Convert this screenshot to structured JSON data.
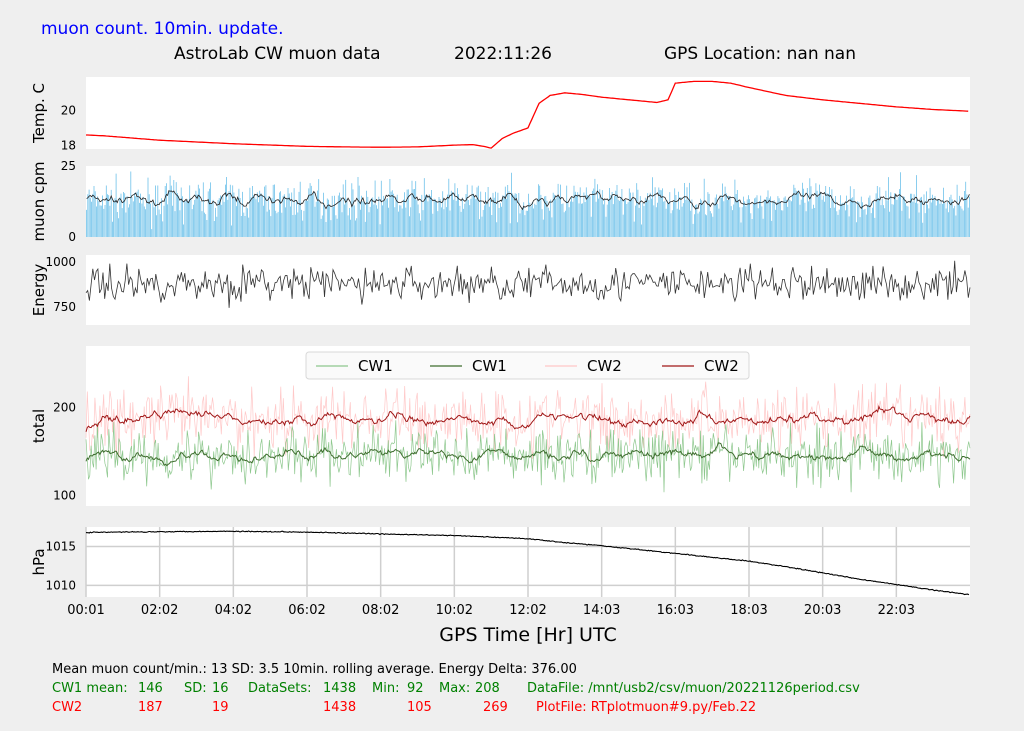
{
  "header": {
    "subtitle": "muon count.  10min. update.",
    "title": "AstroLab CW muon data",
    "date": "2022:11:26",
    "gps": "GPS Location: nan   nan"
  },
  "colors": {
    "background": "#efefef",
    "panel": "#ffffff",
    "temp_line": "#ff0000",
    "muon_bars": "#6ec1ea",
    "muon_avg": "#222222",
    "energy": "#333333",
    "cw1_raw": "#8ec88e",
    "cw1_avg": "#3f6e2f",
    "cw2_raw": "#ffc8c8",
    "cw2_avg": "#a01818",
    "pressure": "#000000",
    "stats_black": "#000000",
    "stats_green": "#008000",
    "stats_red": "#ff0000"
  },
  "chart_data": [
    {
      "type": "line",
      "ylabel": "Temp. C",
      "yticks": [
        18,
        20
      ],
      "ylim": [
        17.8,
        21.9
      ],
      "x": [
        0,
        0.5,
        2,
        4,
        6,
        7,
        8,
        9,
        10,
        10.5,
        10.8,
        11,
        11.3,
        11.6,
        12,
        12.3,
        12.6,
        13,
        13.5,
        14,
        15,
        15.5,
        15.8,
        16,
        16.5,
        17,
        17.5,
        18,
        19,
        20,
        21,
        22,
        23,
        24
      ],
      "y": [
        18.6,
        18.55,
        18.3,
        18.1,
        17.95,
        17.92,
        17.9,
        17.92,
        18.02,
        18.05,
        17.95,
        17.85,
        18.4,
        18.7,
        19.0,
        20.4,
        20.85,
        21.0,
        20.9,
        20.75,
        20.55,
        20.45,
        20.6,
        21.55,
        21.65,
        21.65,
        21.55,
        21.3,
        20.85,
        20.6,
        20.4,
        20.2,
        20.05,
        19.95
      ]
    },
    {
      "type": "bar",
      "ylabel": "muon cpm",
      "yticks": [
        0,
        25
      ],
      "ylim": [
        0,
        25
      ],
      "mean": 13,
      "sd": 3.5,
      "series": [
        {
          "name": "",
          "style": "bars",
          "mean": 13,
          "sd": 3.5
        },
        {
          "name": "",
          "style": "rolling-average",
          "mean": 13
        }
      ]
    },
    {
      "type": "line",
      "ylabel": "Energy",
      "yticks": [
        750,
        1000
      ],
      "ylim": [
        650,
        1040
      ],
      "series": [
        {
          "name": "",
          "mean": 880,
          "spread": 110
        }
      ]
    },
    {
      "type": "line",
      "ylabel": "total",
      "yticks": [
        100,
        200
      ],
      "ylim": [
        88,
        270
      ],
      "legend": "top-center",
      "series": [
        {
          "name": "CW1",
          "style": "raw",
          "mean": 146,
          "sd": 16
        },
        {
          "name": "CW1",
          "style": "rolling-average",
          "mean": 146
        },
        {
          "name": "CW2",
          "style": "raw",
          "mean": 187,
          "sd": 19
        },
        {
          "name": "CW2",
          "style": "rolling-average",
          "mean": 187
        }
      ]
    },
    {
      "type": "line",
      "ylabel": "hPa",
      "yticks": [
        1010,
        1015
      ],
      "ylim": [
        1008.5,
        1017.5
      ],
      "grid": true,
      "x": [
        0,
        2,
        4,
        6,
        8,
        10,
        11,
        12,
        13,
        14,
        15,
        16,
        17,
        18,
        19,
        20,
        21,
        22,
        23,
        24
      ],
      "y": [
        1016.8,
        1016.9,
        1016.95,
        1016.85,
        1016.6,
        1016.4,
        1016.2,
        1016.0,
        1015.5,
        1015.1,
        1014.6,
        1014.1,
        1013.6,
        1013.1,
        1012.4,
        1011.6,
        1010.8,
        1010.1,
        1009.4,
        1008.8
      ]
    }
  ],
  "xaxis": {
    "label": "GPS Time  [Hr] UTC",
    "ticks": [
      "00:01",
      "02:02",
      "04:02",
      "06:02",
      "08:02",
      "10:02",
      "12:02",
      "14:03",
      "16:03",
      "18:03",
      "20:03",
      "22:03"
    ],
    "xlim": [
      0,
      24
    ]
  },
  "stats": {
    "line1": "Mean muon count/min.: 13  SD: 3.5   10min. rolling average.    Energy Delta:  376.00",
    "cw1": {
      "label": "CW1 mean:",
      "mean": "146",
      "sd_label": "SD:",
      "sd": "16",
      "datasets_label": "DataSets:",
      "datasets": "1438",
      "min_label": "Min:",
      "min": "92",
      "max_label": "Max:",
      "max": "208",
      "file": "DataFile: /mnt/usb2/csv/muon/20221126period.csv"
    },
    "cw2": {
      "label": "CW2",
      "mean": "187",
      "sd": "19",
      "datasets": "1438",
      "min": "105",
      "max": "269",
      "file": "PlotFile: RTplotmuon#9.py/Feb.22"
    }
  }
}
